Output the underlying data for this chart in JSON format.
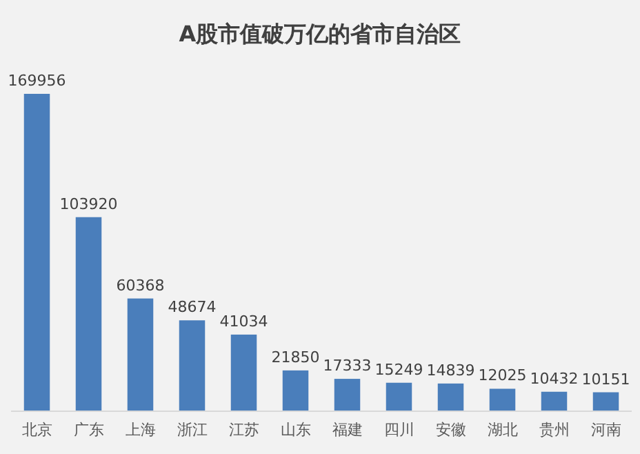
{
  "chart_data": {
    "type": "bar",
    "title": "A股市值破万亿的省市自治区",
    "categories": [
      "北京",
      "广东",
      "上海",
      "浙江",
      "江苏",
      "山东",
      "福建",
      "四川",
      "安徽",
      "湖北",
      "贵州",
      "河南"
    ],
    "values": [
      169956,
      103920,
      60368,
      48674,
      41034,
      21850,
      17333,
      15249,
      14839,
      12025,
      10432,
      10151
    ],
    "color": "#4a7ebb",
    "data_labels": true
  }
}
